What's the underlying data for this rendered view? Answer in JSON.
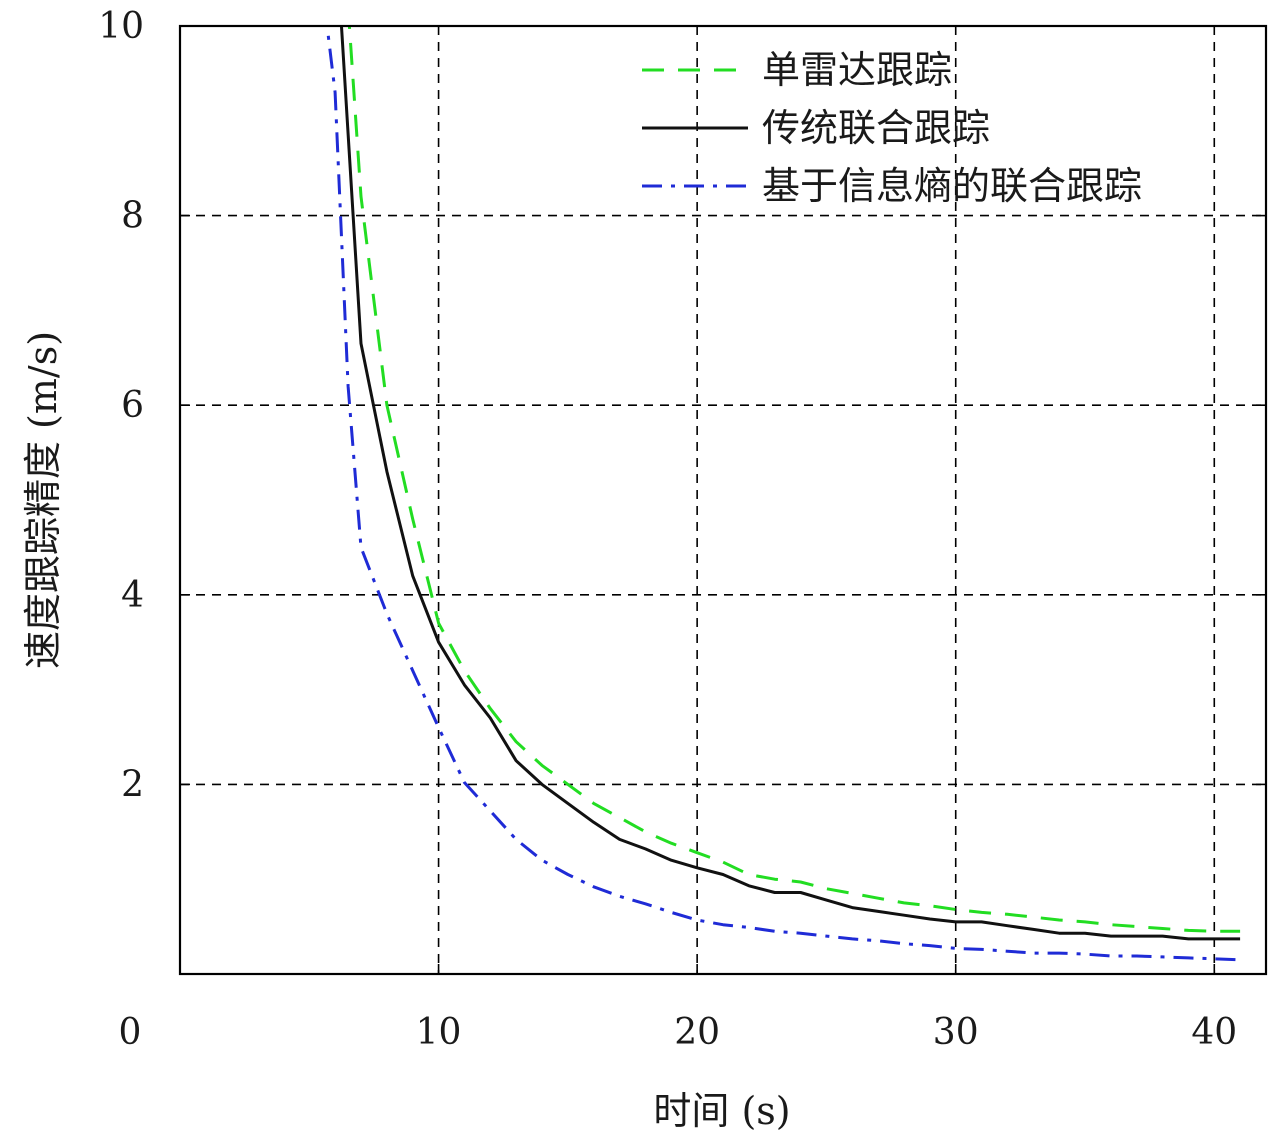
{
  "chart_data": {
    "type": "line",
    "xlabel": "时间 (s)",
    "ylabel": "速度跟踪精度 (m/s)",
    "xlim": [
      0,
      42
    ],
    "ylim": [
      0,
      10
    ],
    "x_ticks": [
      0,
      10,
      20,
      30,
      40
    ],
    "y_ticks": [
      0,
      2,
      4,
      6,
      8,
      10
    ],
    "x_tick_labels": [
      "0",
      "10",
      "20",
      "30",
      "40"
    ],
    "y_tick_labels": [
      "2",
      "4",
      "6",
      "8",
      "10"
    ],
    "grid": true,
    "legend_position": "top-right",
    "series": [
      {
        "name": "单雷达跟踪",
        "color": "#22dd22",
        "style": "dashed",
        "x": [
          6.5,
          7,
          8,
          9,
          10,
          11,
          12,
          13,
          14,
          15,
          16,
          17,
          18,
          19,
          20,
          21,
          22,
          23,
          24,
          25,
          26,
          27,
          28,
          29,
          30,
          31,
          32,
          33,
          34,
          35,
          36,
          37,
          38,
          39,
          40,
          41
        ],
        "y": [
          10.2,
          8.2,
          6.0,
          4.8,
          3.7,
          3.2,
          2.8,
          2.45,
          2.2,
          2.0,
          1.8,
          1.65,
          1.5,
          1.38,
          1.28,
          1.18,
          1.05,
          1.0,
          0.97,
          0.9,
          0.85,
          0.8,
          0.75,
          0.72,
          0.68,
          0.65,
          0.63,
          0.6,
          0.57,
          0.55,
          0.52,
          0.5,
          0.48,
          0.46,
          0.45,
          0.45
        ]
      },
      {
        "name": "传统联合跟踪",
        "color": "#111111",
        "style": "solid",
        "x": [
          6.2,
          7,
          8,
          9,
          10,
          11,
          12,
          13,
          14,
          15,
          16,
          17,
          18,
          19,
          20,
          21,
          22,
          23,
          24,
          25,
          26,
          27,
          28,
          29,
          30,
          31,
          32,
          33,
          34,
          35,
          36,
          37,
          38,
          39,
          40,
          41
        ],
        "y": [
          10.2,
          6.65,
          5.3,
          4.2,
          3.5,
          3.05,
          2.7,
          2.25,
          2.0,
          1.8,
          1.6,
          1.42,
          1.32,
          1.2,
          1.12,
          1.05,
          0.93,
          0.86,
          0.86,
          0.78,
          0.7,
          0.66,
          0.62,
          0.58,
          0.55,
          0.55,
          0.51,
          0.47,
          0.43,
          0.43,
          0.4,
          0.4,
          0.4,
          0.37,
          0.37,
          0.37
        ]
      },
      {
        "name": "基于信息熵的联合跟踪",
        "color": "#1f2bd6",
        "style": "dashdot",
        "x": [
          5.6,
          6,
          6.5,
          7,
          8,
          9,
          10,
          11,
          12,
          13,
          14,
          15,
          16,
          17,
          18,
          19,
          20,
          21,
          22,
          23,
          24,
          25,
          26,
          27,
          28,
          29,
          30,
          31,
          32,
          33,
          34,
          35,
          36,
          37,
          38,
          39,
          40,
          41
        ],
        "y": [
          10.2,
          9.3,
          6.2,
          4.5,
          3.8,
          3.2,
          2.6,
          2.02,
          1.72,
          1.42,
          1.2,
          1.05,
          0.92,
          0.82,
          0.74,
          0.65,
          0.57,
          0.52,
          0.49,
          0.45,
          0.43,
          0.4,
          0.37,
          0.35,
          0.32,
          0.3,
          0.27,
          0.26,
          0.24,
          0.22,
          0.22,
          0.21,
          0.19,
          0.19,
          0.18,
          0.17,
          0.16,
          0.15
        ]
      }
    ]
  }
}
